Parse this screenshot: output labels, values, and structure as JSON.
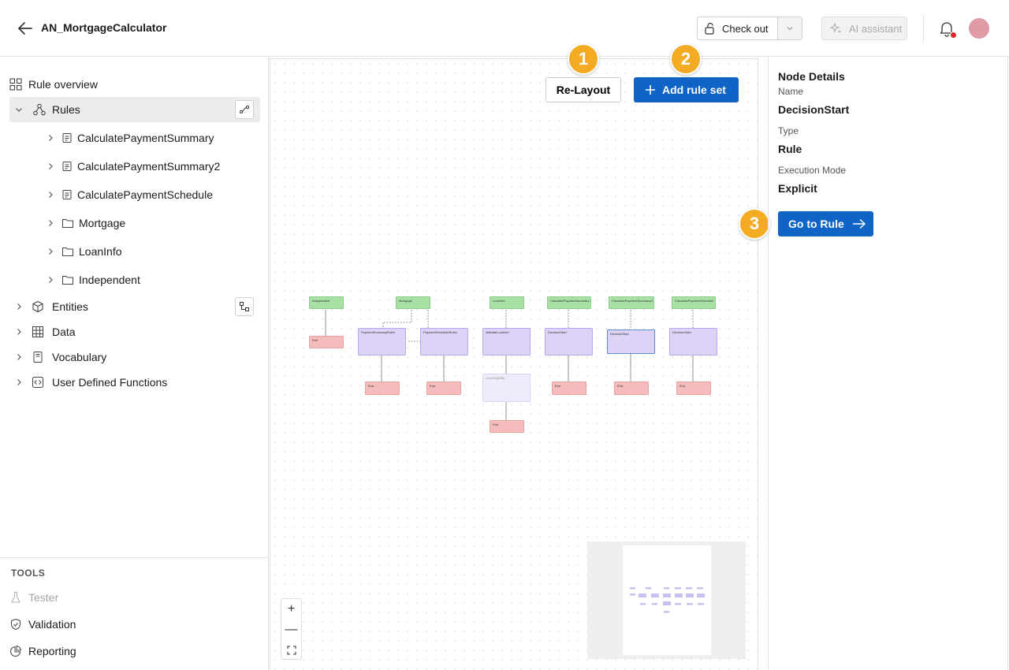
{
  "header": {
    "app_title": "AN_MortgageCalculator",
    "checkout_label": "Check out",
    "ai_label": "AI assistant"
  },
  "sidebar": {
    "overview": "Rule overview",
    "rules": "Rules",
    "rule_children": [
      "CalculatePaymentSummary",
      "CalculatePaymentSummary2",
      "CalculatePaymentSchedule",
      "Mortgage",
      "LoanInfo",
      "Independent"
    ],
    "entities": "Entities",
    "data": "Data",
    "vocabulary": "Vocabulary",
    "udf": "User Defined Functions",
    "tools_title": "TOOLS",
    "tools": [
      "Tester",
      "Validation",
      "Reporting"
    ]
  },
  "canvas": {
    "relayout_label": "Re-Layout",
    "add_rule_set_label": "Add rule set",
    "badges": [
      "1",
      "2",
      "3"
    ],
    "zoom_in": "+",
    "zoom_out": "—",
    "nodes": {
      "start": [
        "Independent",
        "Mortgage",
        "LoanInfo",
        "CalculatePaymentSummary",
        "CalculatePaymentSummary2",
        "CalculatePaymentSchedule"
      ],
      "decision": [
        "PaymentSummaryRules",
        "PaymentScheduleRules",
        "ValidateLoanInfo",
        "DecisionStart",
        "DecisionStart",
        "DecisionStart"
      ],
      "extra": "LoanEligibility",
      "end": "End"
    }
  },
  "details": {
    "title": "Node Details",
    "name_label": "Name",
    "name_value": "DecisionStart",
    "type_label": "Type",
    "type_value": "Rule",
    "mode_label": "Execution Mode",
    "mode_value": "Explicit",
    "goto_label": "Go to Rule"
  },
  "colors": {
    "primary": "#0f64c5",
    "badge": "#f4ab24",
    "start_node": "#a8e0a5",
    "decision_node": "#dcd3f7",
    "end_node": "#f4bcbc"
  }
}
